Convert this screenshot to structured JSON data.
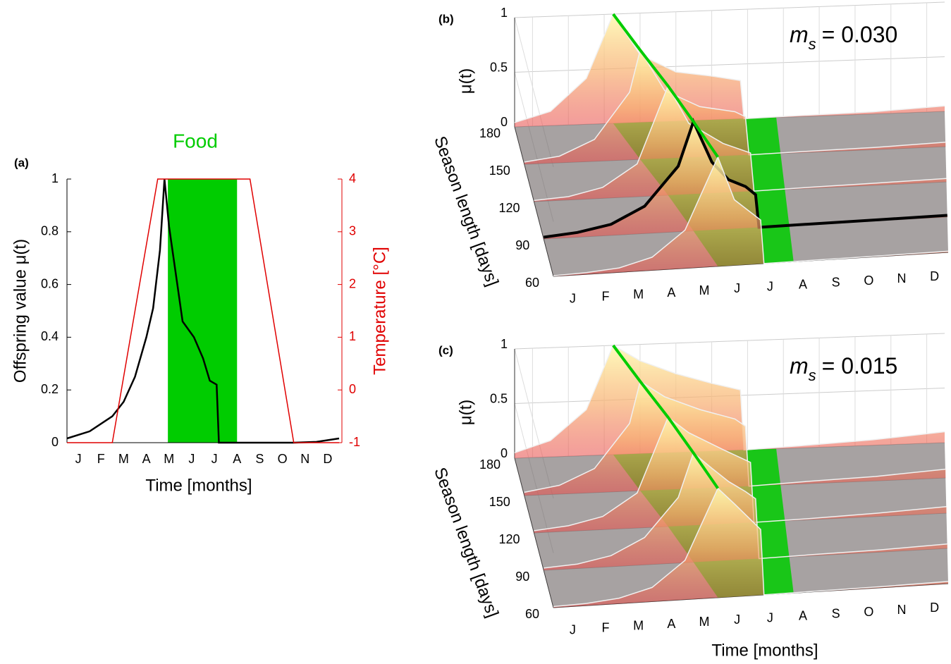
{
  "chart_data": [
    {
      "type": "line",
      "panel_label": "(a)",
      "title": "Food",
      "title_color": "#00cc00",
      "x_label": "Time [months]",
      "y_label": "Offspring value μ(t)",
      "y2_label": "Temperature [°C]",
      "y2_color": "#e00000",
      "xlim": [
        0,
        12
      ],
      "xticks": [
        {
          "value": 0.5,
          "label": "J"
        },
        {
          "value": 1.5,
          "label": "F"
        },
        {
          "value": 2.5,
          "label": "M"
        },
        {
          "value": 3.5,
          "label": "A"
        },
        {
          "value": 4.5,
          "label": "M"
        },
        {
          "value": 5.5,
          "label": "J"
        },
        {
          "value": 6.5,
          "label": "J"
        },
        {
          "value": 7.5,
          "label": "A"
        },
        {
          "value": 8.5,
          "label": "S"
        },
        {
          "value": 9.5,
          "label": "O"
        },
        {
          "value": 10.5,
          "label": "N"
        },
        {
          "value": 11.5,
          "label": "D"
        }
      ],
      "ylim": [
        0,
        1
      ],
      "yticks": [
        0,
        0.2,
        0.4,
        0.6,
        0.8,
        1
      ],
      "y2lim": [
        -1,
        4
      ],
      "y2ticks": [
        -1,
        0,
        1,
        2,
        3,
        4
      ],
      "food": [
        4.45,
        7.5
      ],
      "food_color": "#00cc00",
      "series": [
        {
          "color": "#000000",
          "x": [
            0,
            1,
            2,
            2.5,
            3,
            3.5,
            3.8,
            4.1,
            4.3,
            4.5,
            4.8,
            5.1,
            5.6,
            6.0,
            6.3,
            6.6,
            6.7,
            7,
            10,
            11,
            12
          ],
          "values": [
            0.016,
            0.043,
            0.1,
            0.155,
            0.25,
            0.4,
            0.51,
            0.73,
            1.0,
            0.82,
            0.64,
            0.46,
            0.4,
            0.32,
            0.235,
            0.22,
            0,
            0,
            0,
            0.003,
            0.016
          ]
        },
        {
          "color": "#e00000",
          "axis": "y2",
          "x": [
            0,
            2,
            4,
            8.07,
            10,
            12
          ],
          "values": [
            -1,
            -1,
            4,
            4,
            -1,
            -1
          ]
        }
      ]
    },
    {
      "type": "surface3d",
      "panel_label": "(b)",
      "annotation": {
        "symbol": "m",
        "subscript": "s",
        "text": "= 0.030"
      },
      "z_label": "μ(t)",
      "y_label": "Season length [days]",
      "xlim": [
        0,
        12
      ],
      "xticks": [
        {
          "value": 0.5,
          "label": "J"
        },
        {
          "value": 1.5,
          "label": "F"
        },
        {
          "value": 2.5,
          "label": "M"
        },
        {
          "value": 3.5,
          "label": "A"
        },
        {
          "value": 4.5,
          "label": "M"
        },
        {
          "value": 5.5,
          "label": "J"
        },
        {
          "value": 6.5,
          "label": "J"
        },
        {
          "value": 7.5,
          "label": "A"
        },
        {
          "value": 8.5,
          "label": "S"
        },
        {
          "value": 9.5,
          "label": "O"
        },
        {
          "value": 10.5,
          "label": "N"
        },
        {
          "value": 11.5,
          "label": "D"
        }
      ],
      "ylim": [
        60,
        180
      ],
      "yticks": [
        60,
        90,
        120,
        150,
        180
      ],
      "zlim": [
        0,
        1
      ],
      "zticks": [
        0,
        0.5,
        1
      ],
      "food_color": "#00cc00",
      "series": [
        {
          "season": 180,
          "color": "#f0f0f0",
          "food": [
            2.75,
            7.3
          ],
          "x": [
            0,
            1,
            2,
            2.75,
            3.5,
            4.5,
            5.5,
            6.3,
            6.4,
            8,
            10,
            12
          ],
          "values": [
            0.04,
            0.13,
            0.42,
            1,
            0.62,
            0.45,
            0.4,
            0.35,
            0,
            0.01,
            0.02,
            0.05
          ]
        },
        {
          "season": 150,
          "color": "#f0f0f0",
          "food": [
            3.3,
            7.3
          ],
          "x": [
            0,
            1,
            2,
            3,
            3.3,
            4,
            5,
            6,
            6.3,
            6.4,
            8,
            10,
            12
          ],
          "values": [
            0.02,
            0.06,
            0.2,
            0.62,
            1,
            0.62,
            0.46,
            0.4,
            0.35,
            0,
            0.01,
            0.02,
            0.04
          ]
        },
        {
          "season": 120,
          "color": "#f0f0f0",
          "food": [
            3.9,
            7.3
          ],
          "x": [
            0,
            1,
            2,
            3,
            3.9,
            4.5,
            5.5,
            6.3,
            6.4,
            8,
            10,
            12
          ],
          "values": [
            0.01,
            0.03,
            0.1,
            0.3,
            1,
            0.65,
            0.45,
            0.35,
            0,
            0.01,
            0.02,
            0.03
          ]
        },
        {
          "season": 90,
          "color": "#000000",
          "food": [
            4.45,
            7.3
          ],
          "x": [
            0,
            1,
            2,
            3,
            4,
            4.45,
            5,
            5.5,
            6,
            6.3,
            6.4,
            8,
            10,
            12
          ],
          "values": [
            0.016,
            0.043,
            0.1,
            0.25,
            0.6,
            1,
            0.62,
            0.45,
            0.38,
            0.3,
            0,
            0.005,
            0.01,
            0.016
          ]
        },
        {
          "season": 60,
          "color": "#f0f0f0",
          "food": [
            5.0,
            7.3
          ],
          "x": [
            0,
            1,
            2,
            3,
            4,
            5,
            5.5,
            6.3,
            6.4,
            8,
            10,
            12
          ],
          "values": [
            0.005,
            0.015,
            0.04,
            0.12,
            0.35,
            1,
            0.6,
            0.4,
            0,
            0.003,
            0.006,
            0.01
          ]
        }
      ]
    },
    {
      "type": "surface3d",
      "panel_label": "(c)",
      "annotation": {
        "symbol": "m",
        "subscript": "s",
        "text": "= 0.015"
      },
      "z_label": "μ(t)",
      "y_label": "Season length [days]",
      "x_label": "Time [months]",
      "xlim": [
        0,
        12
      ],
      "xticks": [
        {
          "value": 0.5,
          "label": "J"
        },
        {
          "value": 1.5,
          "label": "F"
        },
        {
          "value": 2.5,
          "label": "M"
        },
        {
          "value": 3.5,
          "label": "A"
        },
        {
          "value": 4.5,
          "label": "M"
        },
        {
          "value": 5.5,
          "label": "J"
        },
        {
          "value": 6.5,
          "label": "J"
        },
        {
          "value": 7.5,
          "label": "A"
        },
        {
          "value": 8.5,
          "label": "S"
        },
        {
          "value": 9.5,
          "label": "O"
        },
        {
          "value": 10.5,
          "label": "N"
        },
        {
          "value": 11.5,
          "label": "D"
        }
      ],
      "ylim": [
        60,
        180
      ],
      "yticks": [
        60,
        90,
        120,
        150,
        180
      ],
      "zlim": [
        0,
        1
      ],
      "zticks": [
        0,
        0.5,
        1
      ],
      "food_color": "#00cc00",
      "series": [
        {
          "season": 180,
          "color": "#f0f0f0",
          "food": [
            2.75,
            7.3
          ],
          "x": [
            0,
            1,
            2,
            2.75,
            3.5,
            4.5,
            5.5,
            6.3,
            6.4,
            8,
            10,
            12
          ],
          "values": [
            0.05,
            0.15,
            0.42,
            1,
            0.85,
            0.72,
            0.62,
            0.55,
            0,
            0.02,
            0.05,
            0.1
          ]
        },
        {
          "season": 150,
          "color": "#f0f0f0",
          "food": [
            3.3,
            7.3
          ],
          "x": [
            0,
            1,
            2,
            3,
            3.3,
            4,
            5,
            6,
            6.3,
            6.4,
            8,
            10,
            12
          ],
          "values": [
            0.03,
            0.08,
            0.22,
            0.62,
            1,
            0.85,
            0.72,
            0.62,
            0.55,
            0,
            0.02,
            0.04,
            0.08
          ]
        },
        {
          "season": 120,
          "color": "#f0f0f0",
          "food": [
            3.9,
            7.3
          ],
          "x": [
            0,
            1,
            2,
            3,
            3.9,
            4.5,
            5.5,
            6.3,
            6.4,
            8,
            10,
            12
          ],
          "values": [
            0.02,
            0.05,
            0.12,
            0.32,
            1,
            0.85,
            0.68,
            0.55,
            0,
            0.01,
            0.03,
            0.06
          ]
        },
        {
          "season": 90,
          "color": "#f0f0f0",
          "food": [
            4.45,
            7.3
          ],
          "x": [
            0,
            1,
            2,
            3,
            4,
            4.45,
            5,
            5.5,
            6,
            6.3,
            6.4,
            8,
            10,
            12
          ],
          "values": [
            0.02,
            0.04,
            0.1,
            0.25,
            0.6,
            1,
            0.85,
            0.72,
            0.62,
            0.55,
            0,
            0.01,
            0.02,
            0.04
          ]
        },
        {
          "season": 60,
          "color": "#f0f0f0",
          "food": [
            5.0,
            7.3
          ],
          "x": [
            0,
            1,
            2,
            3,
            4,
            5,
            5.5,
            6.3,
            6.4,
            8,
            10,
            12
          ],
          "values": [
            0.01,
            0.02,
            0.05,
            0.13,
            0.36,
            1,
            0.85,
            0.6,
            0,
            0.005,
            0.01,
            0.02
          ]
        }
      ]
    }
  ]
}
